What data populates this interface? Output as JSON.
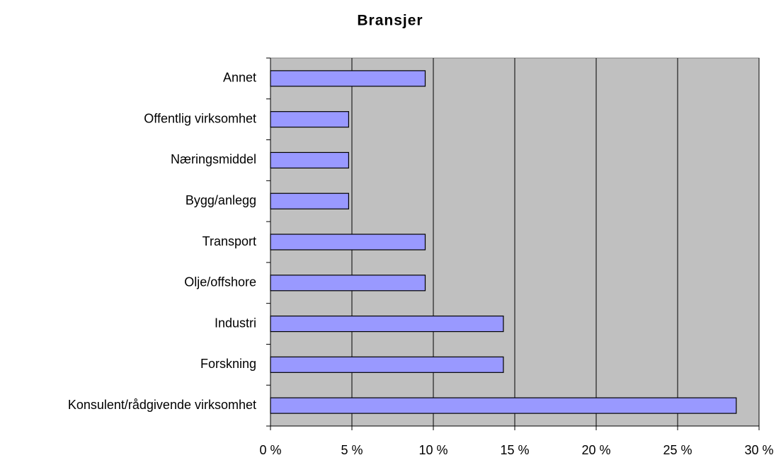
{
  "chart_data": {
    "type": "bar",
    "orientation": "horizontal",
    "title": "Bransjer",
    "categories": [
      "Annet",
      "Offentlig virksomhet",
      "Næringsmiddel",
      "Bygg/anlegg",
      "Transport",
      "Olje/offshore",
      "Industri",
      "Forskning",
      "Konsulent/rådgivende virksomhet"
    ],
    "values": [
      9.5,
      4.8,
      4.8,
      4.8,
      9.5,
      9.5,
      14.3,
      14.3,
      28.6
    ],
    "color": "#9999ff",
    "xlim": [
      0,
      30
    ],
    "xticks": [
      {
        "value": 0,
        "label": "0 %"
      },
      {
        "value": 5,
        "label": "5 %"
      },
      {
        "value": 10,
        "label": "10 %"
      },
      {
        "value": 15,
        "label": "15 %"
      },
      {
        "value": 20,
        "label": "20 %"
      },
      {
        "value": 25,
        "label": "25 %"
      },
      {
        "value": 30,
        "label": "30 %"
      }
    ],
    "grid": true
  }
}
